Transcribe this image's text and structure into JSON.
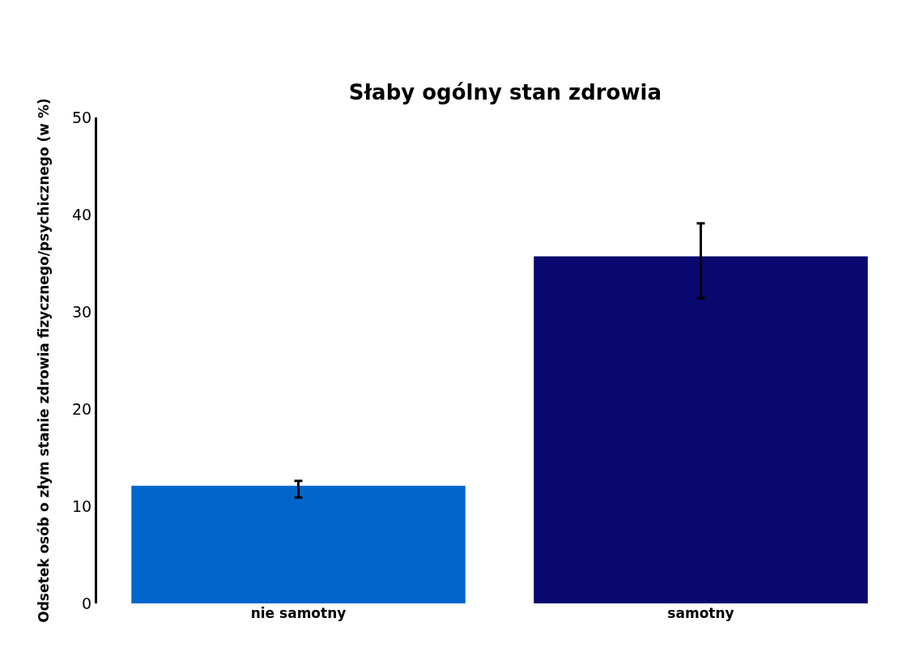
{
  "chart_data": {
    "type": "bar",
    "title": "Słaby ogólny stan zdrowia",
    "ylabel": "Odsetek osób o złym stanie zdrowia fizycznego/psychicznego (w %)",
    "categories": [
      "nie samotny",
      "samotny"
    ],
    "values": [
      12.1,
      35.7
    ],
    "colors": [
      "#0066cc",
      "#08086e"
    ],
    "errors": [
      [
        10.9,
        12.6
      ],
      [
        31.4,
        39.1
      ]
    ],
    "ylim": [
      0,
      50
    ],
    "yticks": [
      0,
      10,
      20,
      30,
      40,
      50
    ],
    "grid": false
  }
}
